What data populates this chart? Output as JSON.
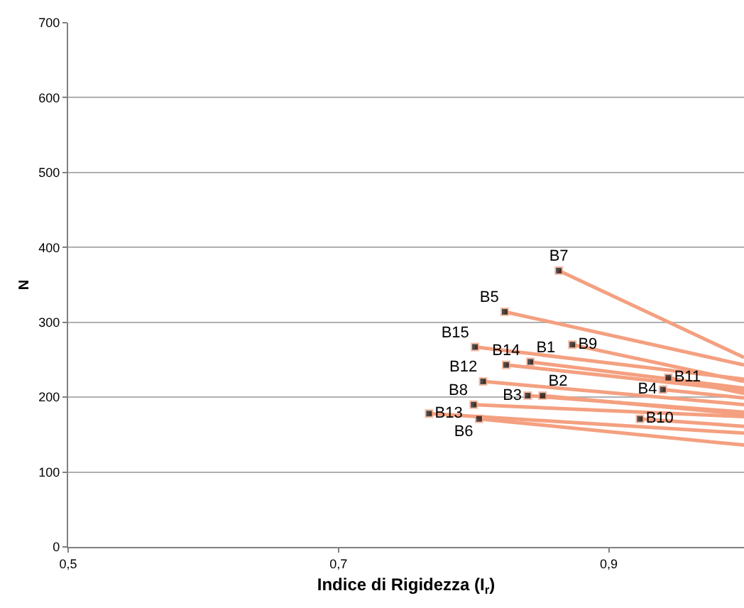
{
  "chart_data": {
    "type": "line",
    "xlabel": "Indice di Rigidezza (I$_{r}$)",
    "ylabel": "N",
    "xlim": [
      0.5,
      1.0
    ],
    "xticks": [
      {
        "value": 0.5,
        "label": "0,5"
      },
      {
        "value": 0.7,
        "label": "0,7"
      },
      {
        "value": 0.9,
        "label": "0,9"
      }
    ],
    "ylim": [
      0,
      700
    ],
    "yticks": [
      0,
      100,
      200,
      300,
      400,
      500,
      600,
      700
    ],
    "grid": "y",
    "legend": false,
    "marker": "square",
    "line_style": "solid",
    "series": [
      {
        "name": "B7",
        "color": "#f4a080",
        "x": [
          0.863,
          1.0
        ],
        "values": [
          369,
          253
        ]
      },
      {
        "name": "B5",
        "color": "#f4a080",
        "x": [
          0.823,
          1.0
        ],
        "values": [
          314,
          243
        ]
      },
      {
        "name": "B15",
        "color": "#f4a080",
        "x": [
          0.801,
          1.0
        ],
        "values": [
          267,
          224
        ]
      },
      {
        "name": "B9",
        "color": "#f4a080",
        "x": [
          0.873,
          1.0
        ],
        "values": [
          270,
          221
        ]
      },
      {
        "name": "B1",
        "color": "#f4a080",
        "x": [
          0.842,
          1.0
        ],
        "values": [
          247,
          212
        ]
      },
      {
        "name": "B14",
        "color": "#f4a080",
        "x": [
          0.824,
          1.0
        ],
        "values": [
          243,
          209
        ]
      },
      {
        "name": "B12",
        "color": "#f4a080",
        "x": [
          0.807,
          1.0
        ],
        "values": [
          221,
          190
        ]
      },
      {
        "name": "B11",
        "color": "#f4a080",
        "x": [
          0.944,
          1.0
        ],
        "values": [
          226,
          205
        ]
      },
      {
        "name": "B4",
        "color": "#f4a080",
        "x": [
          0.94,
          1.0
        ],
        "values": [
          210,
          199
        ]
      },
      {
        "name": "B3",
        "color": "#f4a080",
        "x": [
          0.84,
          1.0
        ],
        "values": [
          202,
          180
        ]
      },
      {
        "name": "B2",
        "color": "#f4a080",
        "x": [
          0.851,
          1.0
        ],
        "values": [
          202,
          177
        ]
      },
      {
        "name": "B8",
        "color": "#f4a080",
        "x": [
          0.8,
          1.0
        ],
        "values": [
          190,
          174
        ]
      },
      {
        "name": "B13",
        "color": "#f4a080",
        "x": [
          0.767,
          1.0
        ],
        "values": [
          178,
          152
        ]
      },
      {
        "name": "B6",
        "color": "#f4a080",
        "x": [
          0.804,
          1.0
        ],
        "values": [
          171,
          136
        ]
      },
      {
        "name": "B10",
        "color": "#f4a080",
        "x": [
          0.923,
          1.0
        ],
        "values": [
          171,
          161
        ]
      }
    ]
  }
}
